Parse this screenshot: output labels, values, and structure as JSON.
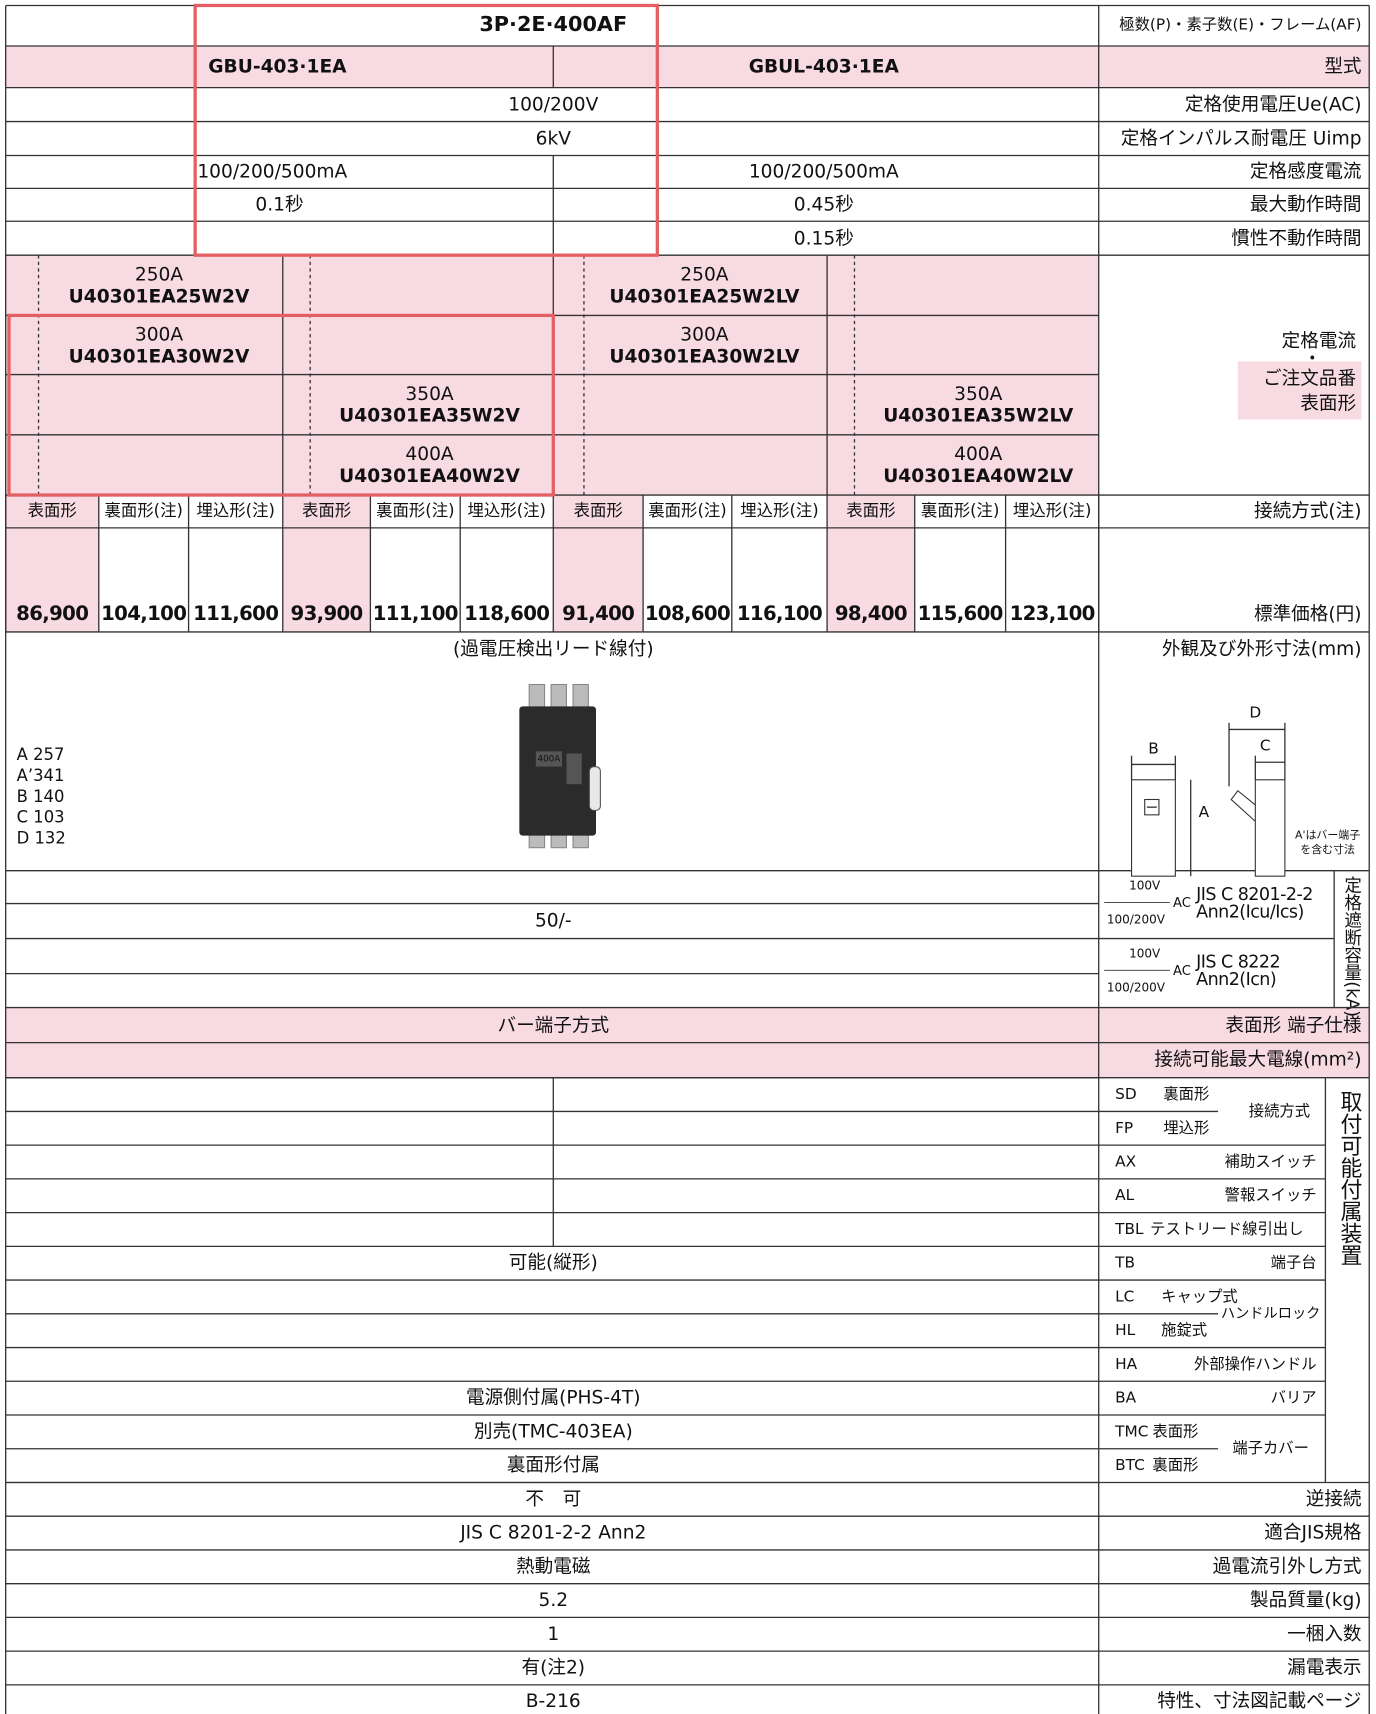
{
  "header": {
    "frame": "3P·2E·400AF",
    "frame_label": "極数(P)・素子数(E)・フレーム(AF)"
  },
  "models": {
    "label": "型式",
    "items": [
      "GBU-403·1EA",
      "GBUL-403·1EA"
    ]
  },
  "specs": [
    {
      "label": "定格使用電圧Ue(AC)",
      "values": [
        "100/200V"
      ]
    },
    {
      "label": "定格インパルス耐電圧 Uimp",
      "values": [
        "6kV"
      ]
    },
    {
      "label": "定格感度電流",
      "values": [
        "100/200/500mA",
        "100/200/500mA"
      ]
    },
    {
      "label": "最大動作時間",
      "values": [
        "0.1秒",
        "0.45秒"
      ]
    },
    {
      "label": "慣性不動作時間",
      "values": [
        "0.15秒"
      ]
    }
  ],
  "ratings": {
    "label_lines": [
      "定格電流",
      "・",
      "ご注文品番",
      "表面形"
    ],
    "items": [
      {
        "current": "250A",
        "code": "U40301EA25W2V"
      },
      {
        "current": "250A",
        "code": "U40301EA25W2LV"
      },
      {
        "current": "300A",
        "code": "U40301EA30W2V"
      },
      {
        "current": "300A",
        "code": "U40301EA30W2LV"
      },
      {
        "current": "350A",
        "code": "U40301EA35W2V"
      },
      {
        "current": "350A",
        "code": "U40301EA35W2LV"
      },
      {
        "current": "400A",
        "code": "U40301EA40W2V"
      },
      {
        "current": "400A",
        "code": "U40301EA40W2LV"
      }
    ]
  },
  "connection": {
    "label": "接続方式(注)",
    "headers": [
      "表面形",
      "裏面形(注)",
      "埋込形(注)",
      "表面形",
      "裏面形(注)",
      "埋込形(注)",
      "表面形",
      "裏面形(注)",
      "埋込形(注)",
      "表面形",
      "裏面形(注)",
      "埋込形(注)"
    ]
  },
  "prices": {
    "label": "標準価格(円)",
    "values": [
      "86,900",
      "104,100",
      "111,600",
      "93,900",
      "111,100",
      "118,600",
      "91,400",
      "108,600",
      "116,100",
      "98,400",
      "115,600",
      "123,100"
    ]
  },
  "appearance": {
    "label": "外観及び外形寸法(mm)",
    "note": "(過電圧検出リード線付)",
    "dimensions": [
      "A 257",
      "A’341",
      "B 140",
      "C 103",
      "D 132"
    ],
    "diagram": {
      "b": "B",
      "d": "D",
      "c": "C",
      "a": "A",
      "note_lines": [
        "A'はバー端子",
        "を含む寸法"
      ]
    },
    "breaker_label": "400A"
  },
  "breaking": {
    "label": "定格遮断容量(kA)",
    "value": "50/-",
    "standards": [
      {
        "v1": "100V",
        "v2": "100/200V",
        "ac": "AC",
        "lines": [
          "JIS C 8201-2-2",
          "Ann2(Icu/Ics)"
        ]
      },
      {
        "v1": "100V",
        "v2": "100/200V",
        "ac": "AC",
        "lines": [
          "JIS C 8222",
          "Ann2(Icn)"
        ]
      }
    ]
  },
  "terminal": {
    "label": "表面形 端子仕様",
    "value": "バー端子方式"
  },
  "max_wire": {
    "label": "接続可能最大電線(mm²)"
  },
  "accessories": {
    "label": "取付可能付属装置",
    "items": [
      {
        "code": "SD",
        "name": "裏面形"
      },
      {
        "code": "FP",
        "name": "埋込形"
      },
      {
        "code": "AX",
        "name": "補助スイッチ"
      },
      {
        "code": "AL",
        "name": "警報スイッチ"
      },
      {
        "code": "TBL",
        "name": "テストリード線引出し"
      },
      {
        "code": "TB",
        "name": "端子台",
        "value": "可能(縦形)"
      },
      {
        "code": "LC",
        "name": "キャップ式"
      },
      {
        "code": "HL",
        "name": "施錠式"
      },
      {
        "code": "HA",
        "name": "外部操作ハンドル"
      },
      {
        "code": "BA",
        "name": "バリア",
        "value": "電源側付属(PHS-4T)"
      },
      {
        "code": "TMC",
        "name": "表面形",
        "value": "別売(TMC-403EA)"
      },
      {
        "code": "BTC",
        "name": "裏面形",
        "value": "裏面形付属"
      }
    ],
    "groups": {
      "connection": "接続方式",
      "handle_lock": "ハンドルロック",
      "terminal_cover": "端子カバー"
    }
  },
  "other": [
    {
      "label": "逆接続",
      "value": "不　可"
    },
    {
      "label": "適合JIS規格",
      "value": "JIS C 8201-2-2 Ann2"
    },
    {
      "label": "過電流引外し方式",
      "value": "熱動電磁"
    },
    {
      "label": "製品質量(kg)",
      "value": "5.2"
    },
    {
      "label": "一梱入数",
      "value": "1"
    },
    {
      "label": "漏電表示",
      "value": "有(注2)"
    },
    {
      "label": "特性、寸法図記載ページ",
      "value": "B-216"
    }
  ]
}
